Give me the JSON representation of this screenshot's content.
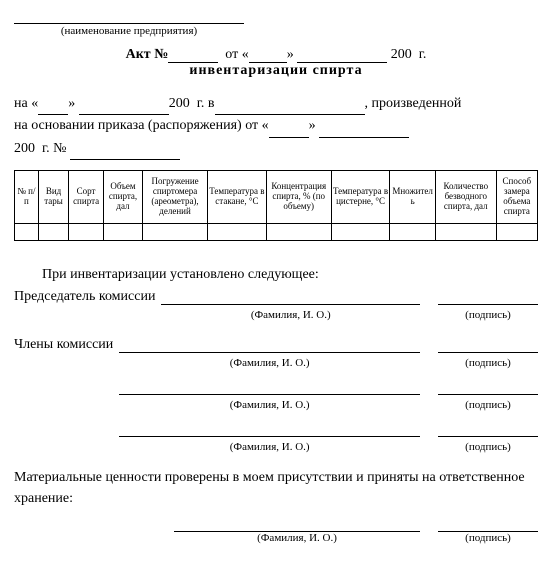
{
  "header": {
    "org_caption": "(наименование предприятия)",
    "act_word": "Акт",
    "num_symbol": "№",
    "ot": "от",
    "quote_l": "«",
    "quote_r": "»",
    "year_prefix": "200",
    "year_suffix": "г.",
    "subtitle": "инвентаризации спирта"
  },
  "intro": {
    "na": "на",
    "year_prefix": "200",
    "gv": "г. в",
    "made": ", произведенной",
    "basis": "на основании приказа (распоряжения) от",
    "year2": "200",
    "g": "г.",
    "num": "№"
  },
  "table": {
    "cols": [
      "№ п/п",
      "Вид тары",
      "Сорт спирта",
      "Объем спирта, дал",
      "Погружение спиртомера (ареометра), делений",
      "Температура в стакане, °С",
      "Концентрация спирта, % (по объему)",
      "Температура в цистерне, °С",
      "Множитель",
      "Количество безводного спирта, дал",
      "Способ замера объема спирта"
    ],
    "widths": [
      22,
      28,
      32,
      36,
      60,
      54,
      60,
      54,
      42,
      56,
      38
    ]
  },
  "result_line": "При инвентаризации установлено следующее:",
  "chairman": "Председатель комиссии",
  "members": "Члены комиссии",
  "fio": "(Фамилия, И. О.)",
  "sign": "(подпись)",
  "footer": "Материальные ценности проверены в моем присутствии и приняты на ответственное хранение:"
}
